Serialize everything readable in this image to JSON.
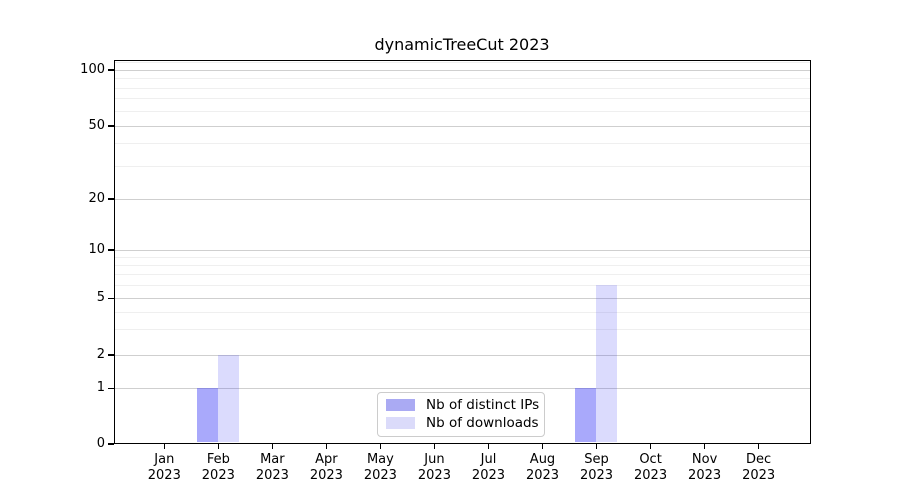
{
  "chart_data": {
    "type": "bar",
    "title": "dynamicTreeCut 2023",
    "categories": [
      "Jan 2023",
      "Feb 2023",
      "Mar 2023",
      "Apr 2023",
      "May 2023",
      "Jun 2023",
      "Jul 2023",
      "Aug 2023",
      "Sep 2023",
      "Oct 2023",
      "Nov 2023",
      "Dec 2023"
    ],
    "series": [
      {
        "name": "Nb of distinct IPs",
        "swatch_color": "#aaaaf3",
        "fill_rgba": "rgba(60,60,245,0.44)",
        "values": [
          0,
          1,
          0,
          0,
          0,
          0,
          0,
          0,
          1,
          0,
          0,
          0
        ]
      },
      {
        "name": "Nb of downloads",
        "swatch_color": "#dbdbfa",
        "fill_rgba": "rgba(60,60,245,0.185)",
        "values": [
          0,
          2,
          0,
          0,
          0,
          0,
          0,
          0,
          6,
          0,
          0,
          0
        ]
      }
    ],
    "y_axis": {
      "scale": "log-like",
      "tick_values": [
        0,
        1,
        2,
        5,
        10,
        20,
        50,
        100
      ],
      "tick_labels": [
        "0",
        "1",
        "2",
        "5",
        "10",
        "20",
        "50",
        "100"
      ],
      "minor_gridline_values": [
        3,
        4,
        6,
        7,
        8,
        9,
        30,
        40,
        60,
        70,
        80,
        90,
        110
      ]
    },
    "grid": {
      "major_horizontal": true,
      "minor_horizontal": true,
      "vertical": false
    },
    "legend": {
      "position": "bottom-center-inside",
      "entries": [
        "Nb of distinct IPs",
        "Nb of downloads"
      ]
    },
    "colors": {
      "grid_major": "#cfcfcf",
      "grid_minor": "#efefef",
      "spine": "#000000",
      "background": "#ffffff"
    }
  }
}
